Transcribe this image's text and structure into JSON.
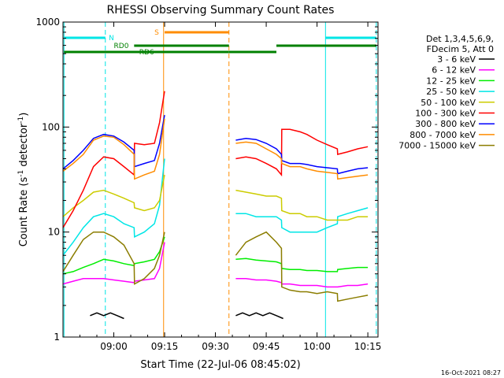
{
  "chart_data": {
    "type": "line",
    "title": "RHESSI Observing Summary Count Rates",
    "xlabel": "Start Time (22-Jul-06 08:45:02)",
    "ylabel": "Count Rate (s⁻¹ detector⁻¹)",
    "ylabel_parts": {
      "base": "Count Rate (s",
      "sup1": "-1",
      "mid": " detector",
      "sup2": "-1",
      "end": ")"
    },
    "yscale": "log",
    "ylim": [
      1,
      1000
    ],
    "xlim_minutes_after_0845": [
      0,
      93
    ],
    "x_tick_labels": [
      "09:00",
      "09:15",
      "09:30",
      "09:45",
      "10:00",
      "10:15"
    ],
    "x_tick_minutes": [
      15,
      30,
      45,
      60,
      75,
      90
    ],
    "y_tick_labels": [
      "1",
      "10",
      "100",
      "1000"
    ],
    "y_tick_values": [
      1,
      10,
      100,
      1000
    ],
    "legend": {
      "placement": "right",
      "header1": "Det 1,3,4,5,6,9,",
      "header2": "FDecim 5, Att 0",
      "entries": [
        {
          "label": "3 - 6 keV",
          "color": "#000000"
        },
        {
          "label": "6 - 12 keV",
          "color": "#ff00ff"
        },
        {
          "label": "12 - 25 keV",
          "color": "#00ee00"
        },
        {
          "label": "25 - 50 keV",
          "color": "#00e6e6"
        },
        {
          "label": "50 - 100 keV",
          "color": "#cccc00"
        },
        {
          "label": "100 - 300 keV",
          "color": "#ff0000"
        },
        {
          "label": "300 - 800 keV",
          "color": "#0000ff"
        },
        {
          "label": "800 - 7000 keV",
          "color": "#ff8c00"
        },
        {
          "label": "7000 - 15000 keV",
          "color": "#8b7d00"
        }
      ]
    },
    "flag_labels": {
      "N": "N",
      "RD0": "RD0",
      "RD6": "RD6",
      "S": "S"
    },
    "flag_colors": {
      "N": "#00e6e6",
      "RD": "#008000",
      "S": "#ff8c00"
    },
    "vlines": [
      {
        "t": 0.3,
        "color": "#00e6e6",
        "dash": false
      },
      {
        "t": 12.5,
        "color": "#00e6e6",
        "dash": true
      },
      {
        "t": 29.7,
        "color": "#ff8c00",
        "dash": false
      },
      {
        "t": 49.0,
        "color": "#ff8c00",
        "dash": true
      },
      {
        "t": 77.5,
        "color": "#00e6e6",
        "dash": false
      },
      {
        "t": 92.5,
        "color": "#00e6e6",
        "dash": true
      }
    ],
    "series": [
      {
        "name": "800 - 7000 keV",
        "color": "#ff8c00",
        "x": [
          0,
          3,
          6,
          9,
          12,
          15,
          18,
          21,
          21.1,
          24,
          27,
          28.5,
          30
        ],
        "y": [
          38,
          45,
          55,
          75,
          82,
          80,
          68,
          55,
          32,
          35,
          38,
          55,
          120
        ],
        "x2": [
          51,
          54,
          57,
          60,
          63,
          64.5,
          64.6,
          67,
          70,
          72,
          75,
          78,
          81,
          81.1,
          84,
          87,
          90
        ],
        "y2": [
          70,
          72,
          70,
          62,
          55,
          50,
          45,
          42,
          42,
          40,
          38,
          37,
          36,
          32,
          33,
          34,
          35
        ]
      },
      {
        "name": "300 - 800 keV",
        "color": "#0000ff",
        "x": [
          0,
          3,
          6,
          9,
          12,
          15,
          18,
          21,
          21.1,
          24,
          27,
          28.5,
          30
        ],
        "y": [
          40,
          48,
          60,
          78,
          85,
          82,
          72,
          60,
          42,
          45,
          48,
          70,
          130
        ],
        "x2": [
          51,
          54,
          57,
          60,
          63,
          64.5,
          64.6,
          67,
          70,
          72,
          75,
          78,
          81,
          81.1,
          84,
          87,
          90
        ],
        "y2": [
          75,
          78,
          76,
          70,
          62,
          55,
          48,
          45,
          45,
          44,
          42,
          41,
          40,
          36,
          38,
          40,
          41
        ]
      },
      {
        "name": "100 - 300 keV",
        "color": "#ff0000",
        "x": [
          0,
          3,
          6,
          9,
          12,
          15,
          18,
          21,
          21.1,
          24,
          27,
          28.5,
          30
        ],
        "y": [
          11,
          16,
          25,
          42,
          52,
          50,
          42,
          35,
          70,
          68,
          70,
          110,
          220
        ],
        "x2": [
          51,
          54,
          57,
          60,
          63,
          64.5,
          64.6,
          67,
          70,
          72,
          75,
          78,
          81,
          81.1,
          84,
          87,
          90
        ],
        "y2": [
          50,
          52,
          50,
          45,
          40,
          35,
          95,
          95,
          90,
          85,
          75,
          68,
          62,
          55,
          58,
          62,
          65
        ]
      },
      {
        "name": "50 - 100 keV",
        "color": "#cccc00",
        "x": [
          0,
          3,
          6,
          9,
          12,
          15,
          18,
          21,
          21.1,
          24,
          27,
          28.5,
          30
        ],
        "y": [
          14,
          17,
          20,
          24,
          25,
          23,
          21,
          19,
          17,
          16,
          17,
          20,
          35
        ],
        "x2": [
          51,
          54,
          57,
          60,
          63,
          64.5,
          64.6,
          67,
          70,
          72,
          75,
          78,
          81,
          81.1,
          84,
          87,
          90
        ],
        "y2": [
          25,
          24,
          23,
          22,
          22,
          21,
          16,
          15,
          15,
          14,
          14,
          13,
          13,
          13,
          13,
          14,
          14
        ]
      },
      {
        "name": "25 - 50 keV",
        "color": "#00e6e6",
        "x": [
          0,
          3,
          6,
          9,
          12,
          15,
          18,
          21,
          21.1,
          24,
          27,
          28.5,
          30
        ],
        "y": [
          6,
          8,
          11,
          14,
          15,
          14,
          12,
          11,
          9,
          10,
          12,
          18,
          50
        ],
        "x2": [
          51,
          54,
          57,
          60,
          63,
          64.5,
          64.6,
          67,
          70,
          72,
          75,
          78,
          81,
          81.1,
          84,
          87,
          90
        ],
        "y2": [
          15,
          15,
          14,
          14,
          14,
          13,
          11,
          10,
          10,
          10,
          10,
          11,
          12,
          14,
          15,
          16,
          17
        ]
      },
      {
        "name": "7000 - 15000 keV",
        "color": "#8b7d00",
        "x": [
          0,
          3,
          6,
          9,
          12,
          15,
          18,
          21,
          21.1,
          24,
          27,
          28.5,
          30
        ],
        "y": [
          4.2,
          6,
          8.5,
          10,
          10,
          9,
          7.5,
          5,
          3.2,
          3.6,
          4.5,
          6,
          10
        ],
        "x2": [
          51,
          54,
          57,
          60,
          63,
          64.5,
          64.6,
          67,
          70,
          72,
          75,
          78,
          81,
          81.1,
          84,
          87,
          90
        ],
        "y2": [
          6,
          8,
          9,
          10,
          8,
          7,
          3,
          2.8,
          2.7,
          2.7,
          2.6,
          2.7,
          2.6,
          2.2,
          2.3,
          2.4,
          2.5
        ]
      },
      {
        "name": "12 - 25 keV",
        "color": "#00ee00",
        "x": [
          0,
          3,
          6,
          9,
          12,
          15,
          18,
          21,
          21.1,
          24,
          27,
          28.5,
          30
        ],
        "y": [
          4,
          4.2,
          4.6,
          5,
          5.5,
          5.3,
          5,
          4.8,
          5,
          5.2,
          5.5,
          6.5,
          9
        ],
        "x2": [
          51,
          54,
          57,
          60,
          63,
          64.5,
          64.6,
          67,
          70,
          72,
          75,
          78,
          81,
          81.1,
          84,
          87,
          90
        ],
        "y2": [
          5.5,
          5.6,
          5.4,
          5.3,
          5.2,
          5,
          4.5,
          4.4,
          4.4,
          4.3,
          4.3,
          4.2,
          4.2,
          4.4,
          4.5,
          4.6,
          4.6
        ]
      },
      {
        "name": "6 - 12 keV",
        "color": "#ff00ff",
        "x": [
          0,
          3,
          6,
          9,
          12,
          15,
          18,
          21,
          21.1,
          24,
          27,
          28.5,
          30
        ],
        "y": [
          3.2,
          3.4,
          3.6,
          3.6,
          3.6,
          3.5,
          3.4,
          3.3,
          3.4,
          3.5,
          3.6,
          4.5,
          8
        ],
        "x2": [
          51,
          54,
          57,
          60,
          63,
          64.5,
          64.6,
          67,
          70,
          72,
          75,
          78,
          81,
          81.1,
          84,
          87,
          90
        ],
        "y2": [
          3.6,
          3.6,
          3.5,
          3.5,
          3.4,
          3.3,
          3.2,
          3.2,
          3.1,
          3.1,
          3.1,
          3,
          3,
          3,
          3.1,
          3.1,
          3.2
        ]
      },
      {
        "name": "3 - 6 keV",
        "color": "#000000",
        "x": [
          8,
          10,
          12,
          14,
          16,
          18
        ],
        "y": [
          1.6,
          1.7,
          1.6,
          1.7,
          1.6,
          1.5
        ],
        "x2": [
          51,
          53,
          55,
          57,
          59,
          61,
          63,
          65
        ],
        "y2": [
          1.6,
          1.7,
          1.6,
          1.7,
          1.6,
          1.7,
          1.6,
          1.5
        ]
      }
    ]
  }
}
